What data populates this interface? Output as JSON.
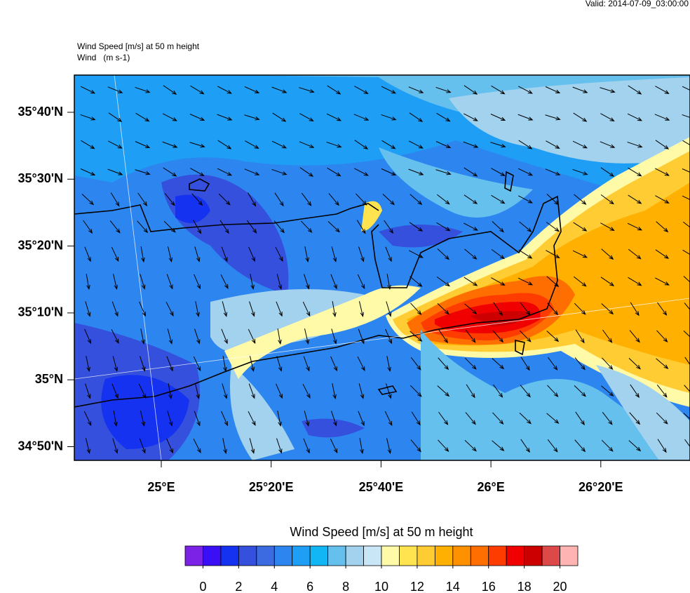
{
  "header": {
    "valid": "Valid: 2014-07-09_03:00:00",
    "title": "Wind Speed [m/s] at 50 m height",
    "subtitle": "Wind   (m s-1)"
  },
  "map": {
    "lat_labels": [
      "35°40'N",
      "35°30'N",
      "35°20'N",
      "35°10'N",
      "35°N",
      "34°50'N"
    ],
    "lon_labels": [
      "25°E",
      "25°20'E",
      "25°40'E",
      "26°E",
      "26°20'E"
    ]
  },
  "colorbar": {
    "title": "Wind Speed [m/s] at 50 m height",
    "colors": [
      "#7b22e6",
      "#3a0ff5",
      "#1432f0",
      "#3450dc",
      "#3c6ae0",
      "#2d86ef",
      "#1e9ef5",
      "#13b6f5",
      "#66c0ee",
      "#a2d2ee",
      "#c8e6f6",
      "#fffaa8",
      "#ffe34f",
      "#ffcc33",
      "#ffb000",
      "#ff9000",
      "#ff6e00",
      "#ff3c00",
      "#f00000",
      "#cc0000",
      "#dd4848",
      "#ffb4b4"
    ],
    "ticks": [
      0,
      2,
      4,
      6,
      8,
      10,
      12,
      14,
      16,
      18,
      20
    ]
  }
}
